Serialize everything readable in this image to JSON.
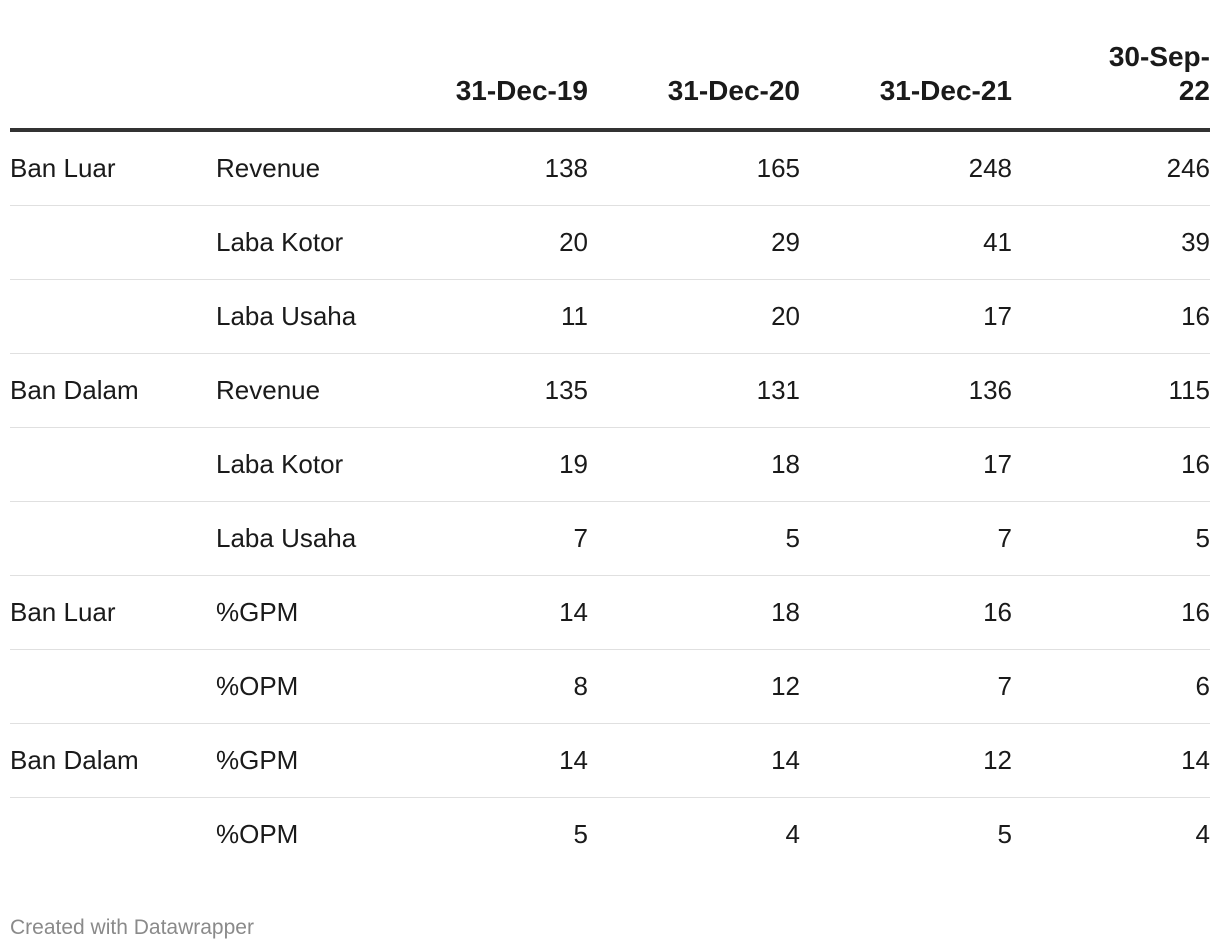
{
  "chart_data": {
    "type": "table",
    "columns": [
      "",
      "",
      "31-Dec-19",
      "31-Dec-20",
      "31-Dec-21",
      "30-Sep-22"
    ],
    "header_last_lines": [
      "30-Sep-",
      "22"
    ],
    "rows": [
      {
        "group": "Ban Luar",
        "metric": "Revenue",
        "values": [
          "138",
          "165",
          "248",
          "246"
        ]
      },
      {
        "group": "",
        "metric": "Laba Kotor",
        "values": [
          "20",
          "29",
          "41",
          "39"
        ]
      },
      {
        "group": "",
        "metric": "Laba Usaha",
        "values": [
          "11",
          "20",
          "17",
          "16"
        ]
      },
      {
        "group": "Ban Dalam",
        "metric": "Revenue",
        "values": [
          "135",
          "131",
          "136",
          "115"
        ]
      },
      {
        "group": "",
        "metric": "Laba Kotor",
        "values": [
          "19",
          "18",
          "17",
          "16"
        ]
      },
      {
        "group": "",
        "metric": "Laba Usaha",
        "values": [
          "7",
          "5",
          "7",
          "5"
        ]
      },
      {
        "group": "Ban Luar",
        "metric": "%GPM",
        "values": [
          "14",
          "18",
          "16",
          "16"
        ]
      },
      {
        "group": "",
        "metric": "%OPM",
        "values": [
          "8",
          "12",
          "7",
          "6"
        ]
      },
      {
        "group": "Ban Dalam",
        "metric": "%GPM",
        "values": [
          "14",
          "14",
          "12",
          "14"
        ]
      },
      {
        "group": "",
        "metric": "%OPM",
        "values": [
          "5",
          "4",
          "5",
          "4"
        ]
      }
    ]
  },
  "footer": {
    "credit": "Created with Datawrapper"
  }
}
